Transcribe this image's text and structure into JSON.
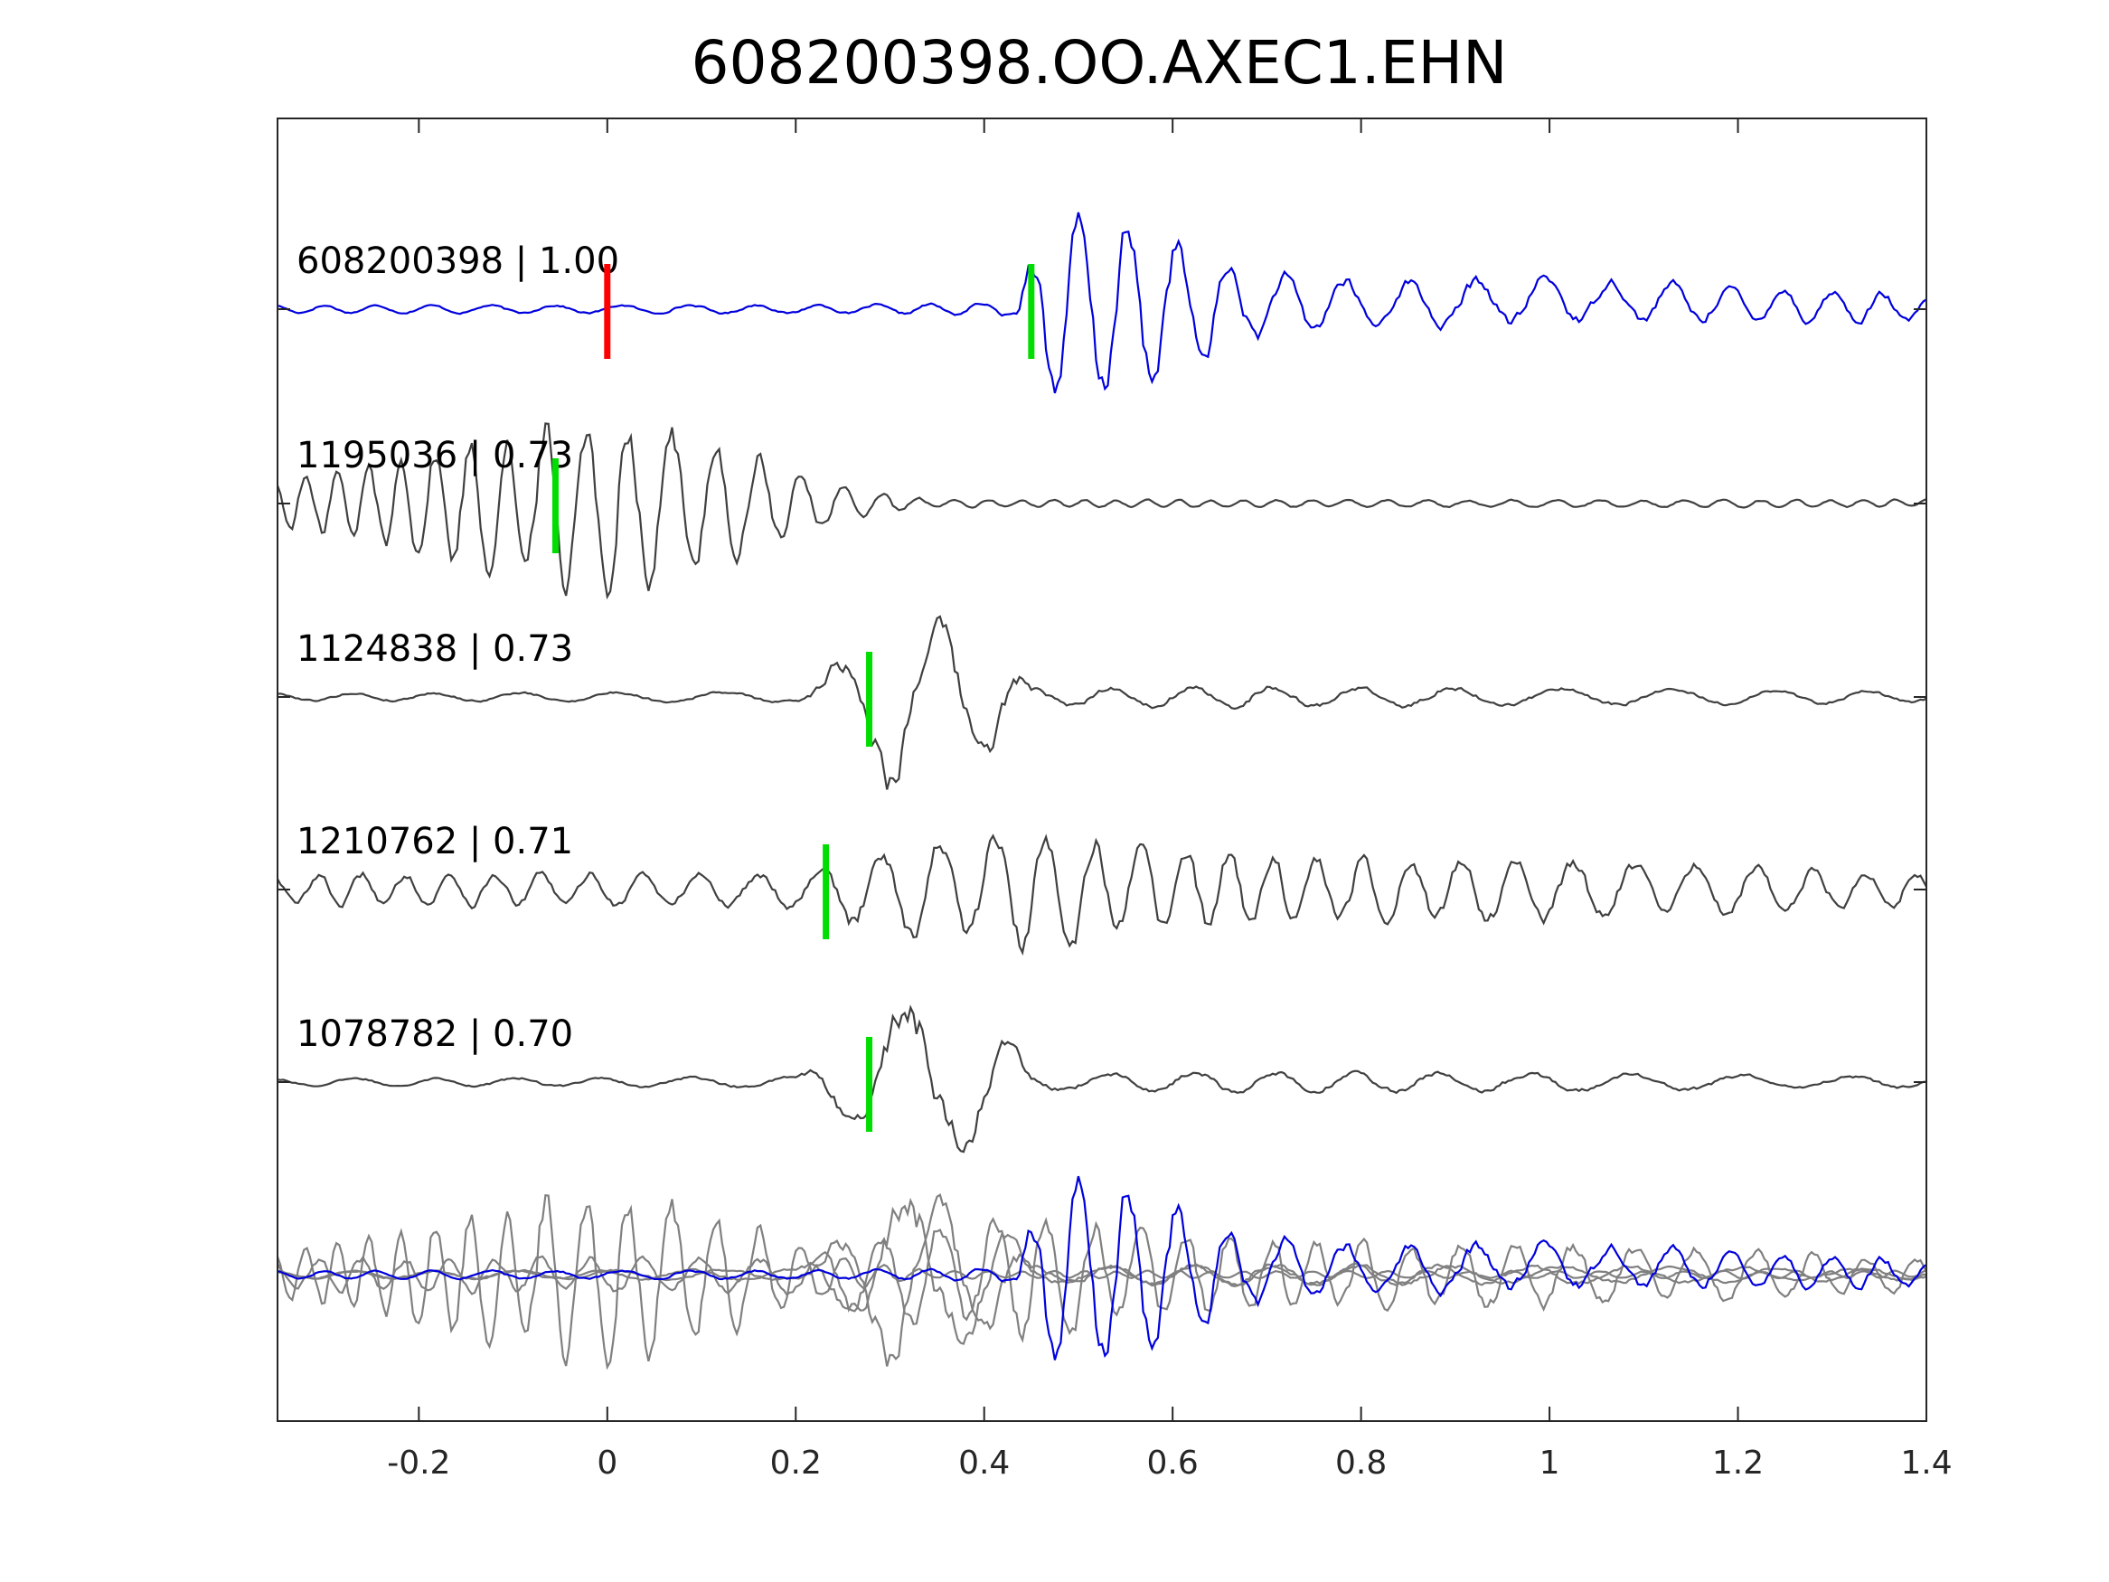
{
  "chart_data": {
    "type": "line",
    "title": "608200398.OO.AXEC1.EHN",
    "xlabel": "",
    "ylabel": "",
    "xlim": [
      -0.35,
      1.4
    ],
    "xticks": [
      -0.2,
      0,
      0.2,
      0.4,
      0.6,
      0.8,
      1,
      1.2,
      1.4
    ],
    "xtick_labels": [
      "-0.2",
      "0",
      "0.2",
      "0.4",
      "0.6",
      "0.8",
      "1",
      "1.2",
      "1.4"
    ],
    "grid": false,
    "colors": {
      "main": "#0000dd",
      "template": "#404040",
      "stack": "#808080",
      "ref_pick": "#ff0000",
      "pick": "#00dd00",
      "axes": "#262626"
    },
    "traces": [
      {
        "label": "608200398 | 1.00",
        "id": "608200398",
        "cc": "1.00",
        "color": "#0000dd",
        "ref_pick": 0.0,
        "pick": 0.45,
        "main": true,
        "envelope": [
          [
            -0.35,
            0.04
          ],
          [
            0.3,
            0.05
          ],
          [
            0.43,
            0.07
          ],
          [
            0.46,
            0.9
          ],
          [
            0.52,
            0.95
          ],
          [
            0.6,
            0.75
          ],
          [
            0.68,
            0.35
          ],
          [
            0.8,
            0.25
          ],
          [
            1.0,
            0.25
          ],
          [
            1.15,
            0.2
          ],
          [
            1.4,
            0.15
          ]
        ],
        "freq": 18,
        "trend": [
          [
            -0.35,
            0
          ],
          [
            0.6,
            0
          ],
          [
            0.75,
            0.05
          ],
          [
            0.9,
            0.05
          ],
          [
            1.0,
            0.1
          ],
          [
            1.4,
            0
          ]
        ]
      },
      {
        "label": "1195036 | 0.73",
        "id": "1195036",
        "cc": "0.73",
        "color": "#404040",
        "pick": -0.055,
        "main": false,
        "envelope": [
          [
            -0.35,
            0.25
          ],
          [
            -0.2,
            0.55
          ],
          [
            -0.05,
            0.95
          ],
          [
            0.0,
            1.0
          ],
          [
            0.1,
            0.8
          ],
          [
            0.18,
            0.45
          ],
          [
            0.25,
            0.18
          ],
          [
            0.35,
            0.04
          ],
          [
            1.4,
            0.04
          ]
        ],
        "freq": 28,
        "trend": [
          [
            -0.35,
            0
          ],
          [
            1.4,
            0
          ]
        ]
      },
      {
        "label": "1124838 | 0.73",
        "id": "1124838",
        "cc": "0.73",
        "color": "#404040",
        "pick": 0.278,
        "main": false,
        "envelope": [
          [
            -0.35,
            0.04
          ],
          [
            0.2,
            0.06
          ],
          [
            0.26,
            0.5
          ],
          [
            0.3,
            0.95
          ],
          [
            0.36,
            0.75
          ],
          [
            0.42,
            0.55
          ],
          [
            0.45,
            0.1
          ],
          [
            0.7,
            0.12
          ],
          [
            1.0,
            0.1
          ],
          [
            1.4,
            0.06
          ]
        ],
        "freq": 11,
        "trend": [
          [
            -0.35,
            0
          ],
          [
            1.4,
            0
          ]
        ]
      },
      {
        "label": "1210762 | 0.71",
        "id": "1210762",
        "cc": "0.71",
        "color": "#404040",
        "pick": 0.232,
        "main": false,
        "envelope": [
          [
            -0.35,
            0.18
          ],
          [
            0.2,
            0.2
          ],
          [
            0.28,
            0.5
          ],
          [
            0.38,
            0.6
          ],
          [
            0.45,
            0.75
          ],
          [
            0.55,
            0.5
          ],
          [
            0.7,
            0.4
          ],
          [
            1.0,
            0.35
          ],
          [
            1.4,
            0.2
          ]
        ],
        "freq": 20,
        "trend": [
          [
            -0.35,
            0
          ],
          [
            1.4,
            0
          ]
        ]
      },
      {
        "label": "1078782 | 0.70",
        "id": "1078782",
        "cc": "0.70",
        "color": "#404040",
        "pick": 0.278,
        "main": false,
        "envelope": [
          [
            -0.35,
            0.04
          ],
          [
            0.2,
            0.06
          ],
          [
            0.26,
            0.5
          ],
          [
            0.3,
            0.95
          ],
          [
            0.36,
            0.75
          ],
          [
            0.42,
            0.55
          ],
          [
            0.45,
            0.1
          ],
          [
            0.7,
            0.12
          ],
          [
            1.0,
            0.1
          ],
          [
            1.4,
            0.06
          ]
        ],
        "freq": 11,
        "trend": [
          [
            -0.35,
            0
          ],
          [
            1.4,
            0
          ]
        ]
      }
    ],
    "stack": {
      "label": "",
      "note": "all traces overlaid"
    }
  }
}
